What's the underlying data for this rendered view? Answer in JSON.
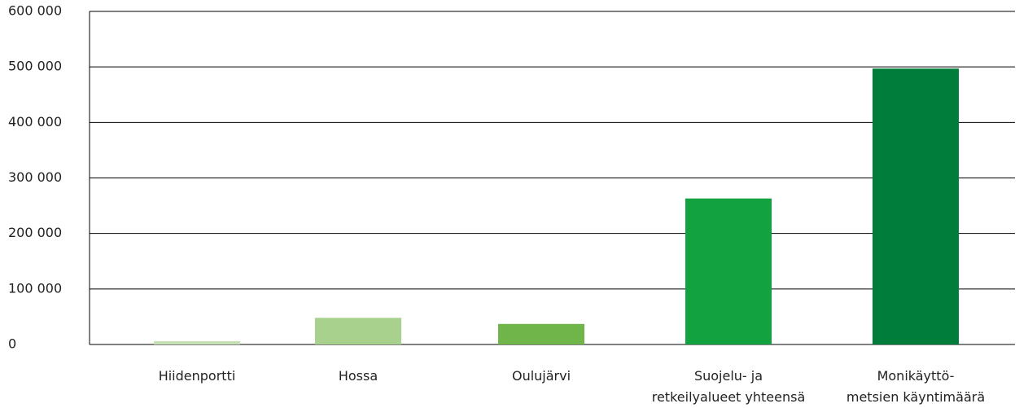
{
  "chart_data": {
    "type": "bar",
    "categories": [
      "Hiidenportti",
      "Hossa",
      "Oulujärvi",
      "Suojelu- ja\nretkeilyalueet yhteensä",
      "Monikäyttö-\nmetsien käyntimäärä"
    ],
    "values": [
      6000,
      48000,
      37000,
      263000,
      497000
    ],
    "colors": [
      "#c5e0b4",
      "#a9d18e",
      "#70b54a",
      "#12a240",
      "#007d3a"
    ],
    "ylim": [
      0,
      600000
    ],
    "yticks": [
      {
        "value": 0,
        "label": "0"
      },
      {
        "value": 100000,
        "label": "100 000"
      },
      {
        "value": 200000,
        "label": "200 000"
      },
      {
        "value": 300000,
        "label": "300 000"
      },
      {
        "value": 400000,
        "label": "400 000"
      },
      {
        "value": 500000,
        "label": "500 000"
      },
      {
        "value": 600000,
        "label": "600 000"
      }
    ],
    "grid": true
  }
}
